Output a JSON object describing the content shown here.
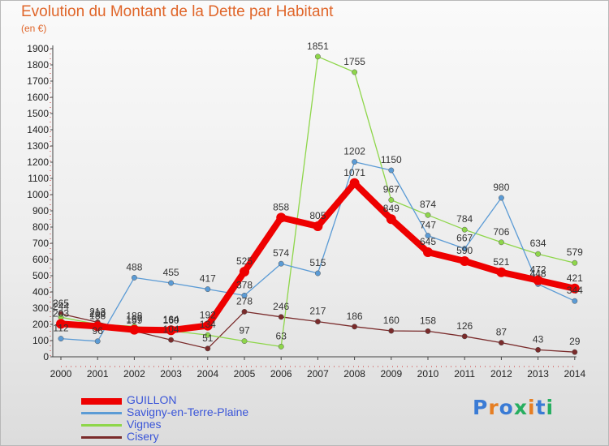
{
  "header": {
    "title": "Evolution du Montant de la Dette par Habitant",
    "unit": "(en €)"
  },
  "logo": {
    "text": "Proxiti"
  },
  "chart_data": {
    "type": "line",
    "title": "Evolution du Montant de la Dette par Habitant",
    "ylabel": "(en €)",
    "xlabel": "",
    "x": [
      "2000",
      "2001",
      "2002",
      "2003",
      "2004",
      "2005",
      "2006",
      "2007",
      "2008",
      "2009",
      "2010",
      "2011",
      "2012",
      "2013",
      "2014"
    ],
    "ylim": [
      0,
      1900
    ],
    "yticks": [
      0,
      100,
      200,
      300,
      400,
      500,
      600,
      700,
      800,
      900,
      1000,
      1100,
      1200,
      1300,
      1400,
      1500,
      1600,
      1700,
      1800,
      1900
    ],
    "grid": false,
    "legend": "bottom-left",
    "series": [
      {
        "name": "GUILLON",
        "color": "#ee0000",
        "values": [
          203,
          188,
          167,
          164,
          192,
          525,
          858,
          805,
          1071,
          849,
          645,
          590,
          521,
          472,
          421
        ]
      },
      {
        "name": "Savigny-en-Terre-Plaine",
        "color": "#5b9bd5",
        "values": [
          112,
          96,
          488,
          455,
          417,
          378,
          574,
          515,
          1202,
          1150,
          747,
          667,
          980,
          448,
          344
        ]
      },
      {
        "name": "Vignes",
        "color": "#8ed64a",
        "values": [
          244,
          200,
          188,
          160,
          134,
          97,
          63,
          1851,
          1755,
          967,
          874,
          784,
          706,
          634,
          579
        ]
      },
      {
        "name": "Cisery",
        "color": "#7a2b2b",
        "values": [
          265,
          213,
          159,
          104,
          51,
          278,
          246,
          217,
          186,
          160,
          158,
          126,
          87,
          43,
          29
        ]
      }
    ]
  }
}
